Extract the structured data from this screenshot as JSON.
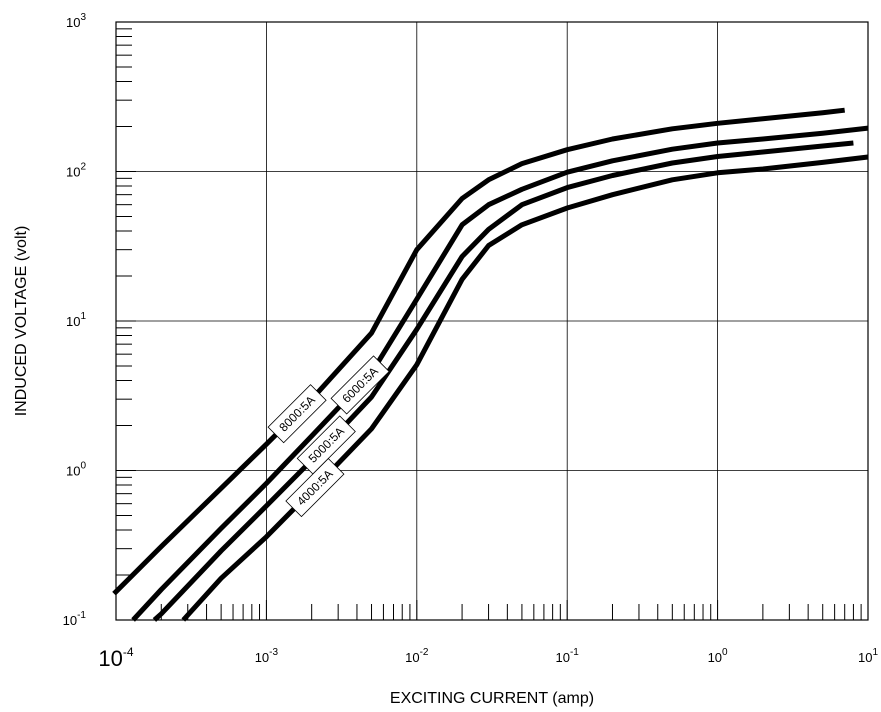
{
  "chart_data": {
    "type": "line",
    "title": "",
    "xlabel": "EXCITING CURRENT (amp)",
    "ylabel": "INDUCED VOLTAGE (volt)",
    "xscale": "log",
    "yscale": "log",
    "xlim": [
      0.0001,
      10
    ],
    "ylim": [
      0.1,
      1000
    ],
    "grid": true,
    "legend": "inline labels on curves",
    "line_color": "#000000",
    "x_tick_labels": [
      {
        "base": "10",
        "exp": "-4"
      },
      {
        "base": "10",
        "exp": "-3"
      },
      {
        "base": "10",
        "exp": "-2"
      },
      {
        "base": "10",
        "exp": "-1"
      },
      {
        "base": "10",
        "exp": "0"
      },
      {
        "base": "10",
        "exp": "1"
      }
    ],
    "y_tick_labels": [
      {
        "base": "10",
        "exp": "-1"
      },
      {
        "base": "10",
        "exp": "0"
      },
      {
        "base": "10",
        "exp": "1"
      },
      {
        "base": "10",
        "exp": "2"
      },
      {
        "base": "10",
        "exp": "3"
      }
    ],
    "series": [
      {
        "name": "8000:5A",
        "x": [
          9.7e-05,
          0.0002,
          0.0005,
          0.001,
          0.002,
          0.005,
          0.01,
          0.02,
          0.03,
          0.05,
          0.1,
          0.2,
          0.5,
          1,
          2,
          5,
          7
        ],
        "y": [
          0.15,
          0.31,
          0.76,
          1.5,
          3.0,
          8.3,
          30,
          66,
          88,
          113,
          140,
          165,
          193,
          210,
          225,
          247,
          257
        ]
      },
      {
        "name": "6000:5A",
        "x": [
          0.00013,
          0.0002,
          0.0005,
          0.001,
          0.002,
          0.005,
          0.01,
          0.02,
          0.03,
          0.05,
          0.1,
          0.2,
          0.5,
          1,
          2,
          5,
          10
        ],
        "y": [
          0.1,
          0.16,
          0.41,
          0.82,
          1.7,
          4.5,
          14,
          44,
          60,
          76,
          99,
          118,
          141,
          155,
          165,
          180,
          195
        ]
      },
      {
        "name": "5000:5A",
        "x": [
          0.00018,
          0.0002,
          0.0005,
          0.001,
          0.002,
          0.005,
          0.01,
          0.02,
          0.03,
          0.05,
          0.1,
          0.2,
          0.5,
          1,
          2,
          5,
          8
        ],
        "y": [
          0.1,
          0.11,
          0.29,
          0.58,
          1.17,
          3.1,
          8.8,
          27,
          41,
          60,
          78,
          94,
          114,
          126,
          135,
          148,
          155
        ]
      },
      {
        "name": "4000:5A",
        "x": [
          0.00028,
          0.0005,
          0.001,
          0.002,
          0.005,
          0.01,
          0.02,
          0.03,
          0.05,
          0.1,
          0.2,
          0.5,
          1,
          2,
          5,
          10
        ],
        "y": [
          0.1,
          0.19,
          0.36,
          0.73,
          1.9,
          5.1,
          19,
          32,
          44,
          57,
          70,
          88,
          98,
          104,
          115,
          125
        ]
      }
    ]
  }
}
